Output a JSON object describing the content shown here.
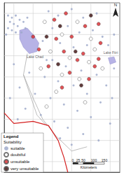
{
  "chart_data": {
    "type": "scatter",
    "xlim": [
      13.5,
      19.5
    ],
    "ylim": [
      7.5,
      15.5
    ],
    "xticks": [
      14,
      15,
      16,
      17,
      18,
      19
    ],
    "yticks": [
      8,
      9,
      10,
      11,
      12,
      13,
      14,
      15
    ],
    "grid": true,
    "tick_labels": false,
    "legend": "bottom-left",
    "legend_title": "Legend",
    "legend_subtitle": "Suitability",
    "north": "N",
    "scale_bar": {
      "ticks": [
        0,
        25,
        50,
        100,
        150
      ],
      "label": "Kilometers"
    },
    "lakes": [
      {
        "name": "Lake Chad",
        "color": "#b7b3e6",
        "label_at": [
          15.1,
          12.95
        ],
        "coords": [
          [
            14.3,
            14.2
          ],
          [
            14.7,
            14.3
          ],
          [
            15.0,
            14.0
          ],
          [
            15.3,
            13.6
          ],
          [
            15.2,
            13.2
          ],
          [
            14.8,
            13.1
          ],
          [
            14.5,
            13.4
          ],
          [
            14.3,
            13.8
          ]
        ]
      },
      {
        "name": "Lake Fitri",
        "color": "#b7b3e6",
        "label_at": [
          19.4,
          13.15
        ],
        "coords": [
          [
            18.9,
            12.9
          ],
          [
            19.2,
            12.95
          ],
          [
            19.3,
            12.7
          ],
          [
            19.0,
            12.6
          ]
        ]
      }
    ],
    "rivers": {
      "color": "#a0a0a0",
      "lines": [
        [
          [
            14.5,
            12.1
          ],
          [
            15.0,
            11.0
          ],
          [
            15.5,
            10.0
          ],
          [
            16.2,
            9.2
          ],
          [
            17.0,
            8.5
          ],
          [
            17.8,
            8.7
          ]
        ],
        [
          [
            14.5,
            12.1
          ],
          [
            14.9,
            11.0
          ],
          [
            15.2,
            10.2
          ],
          [
            15.7,
            9.7
          ]
        ],
        [
          [
            14.5,
            12.1
          ],
          [
            14.7,
            13.1
          ]
        ]
      ]
    },
    "borders": {
      "color": "#d42020",
      "lines": [
        [
          [
            13.5,
            10.3
          ],
          [
            14.0,
            9.8
          ],
          [
            15.0,
            9.9
          ],
          [
            15.8,
            9.7
          ],
          [
            16.3,
            9.0
          ],
          [
            16.6,
            8.2
          ],
          [
            16.8,
            7.5
          ]
        ]
      ]
    },
    "series": [
      {
        "name": "suitable",
        "color": "#9aa6c8",
        "marker": "dot",
        "x": [
          13.7,
          13.9,
          14.1,
          14.3,
          13.8,
          14.0,
          14.2,
          14.5,
          13.7,
          13.9,
          14.4,
          14.7,
          14.1,
          13.6,
          14.6,
          15.8,
          16.3,
          17.0,
          17.6,
          18.3,
          16.0,
          16.8,
          17.4,
          18.1,
          18.6,
          15.5,
          16.4,
          17.1,
          17.8,
          18.9,
          19.2,
          15.7,
          16.0,
          16.7,
          17.5,
          18.3,
          18.8,
          14.8,
          15.6,
          16.3,
          17.1,
          17.8,
          18.5,
          14.3,
          15.1,
          15.9,
          16.6,
          17.3,
          18.0,
          14.6,
          15.4,
          16.1,
          16.8,
          17.6,
          18.4,
          16.4,
          17.0,
          19.0,
          19.1,
          14.0,
          13.8,
          14.2,
          19.2
        ],
        "y": [
          14.9,
          14.8,
          14.9,
          14.7,
          14.6,
          14.5,
          14.4,
          14.6,
          14.3,
          14.2,
          14.1,
          14.8,
          14.1,
          14.0,
          14.3,
          15.1,
          14.9,
          15.2,
          14.8,
          15.0,
          14.3,
          14.4,
          14.1,
          14.2,
          13.9,
          13.7,
          13.6,
          13.4,
          13.5,
          13.5,
          12.4,
          12.8,
          12.8,
          12.5,
          12.3,
          12.1,
          11.6,
          12.2,
          12.0,
          11.8,
          11.6,
          11.2,
          10.8,
          11.5,
          11.2,
          11.0,
          10.7,
          10.4,
          10.1,
          10.5,
          10.2,
          9.9,
          9.6,
          9.3,
          9.0,
          9.1,
          8.8,
          9.8,
          11.0,
          12.6,
          11.0,
          10.0,
          14.0
        ]
      },
      {
        "name": "doubtful",
        "color": "#ffffff",
        "marker": "circle",
        "x": [
          15.6,
          16.5,
          17.3,
          18.0,
          15.9,
          16.9,
          17.9,
          18.6,
          15.4,
          16.5,
          17.4,
          16.2,
          17.7,
          15.7,
          18.2
        ],
        "y": [
          14.6,
          14.0,
          14.6,
          13.8,
          13.2,
          12.9,
          12.7,
          12.4,
          12.4,
          12.1,
          11.9,
          11.3,
          10.8,
          10.6,
          13.3
        ]
      },
      {
        "name": "unsuitable",
        "color": "#d9262b",
        "marker": "circle",
        "x": [
          16.1,
          16.7,
          17.7,
          18.4,
          16.2,
          17.0,
          17.6,
          18.5,
          15.3,
          16.6,
          17.3,
          18.2,
          15.8,
          16.9,
          17.9,
          16.5,
          18.4,
          15.0
        ],
        "y": [
          14.7,
          15.0,
          14.4,
          14.5,
          13.8,
          13.9,
          13.1,
          13.6,
          13.3,
          13.2,
          12.8,
          12.5,
          12.5,
          12.2,
          11.9,
          11.5,
          12.85,
          13.9
        ]
      },
      {
        "name": "very unsuitable",
        "color": "#3a0a0a",
        "marker": "circle",
        "x": [
          16.4,
          17.2,
          15.7,
          18.0,
          16.3,
          17.5
        ],
        "y": [
          14.4,
          13.2,
          13.9,
          14.9,
          12.6,
          11.6
        ]
      }
    ]
  }
}
